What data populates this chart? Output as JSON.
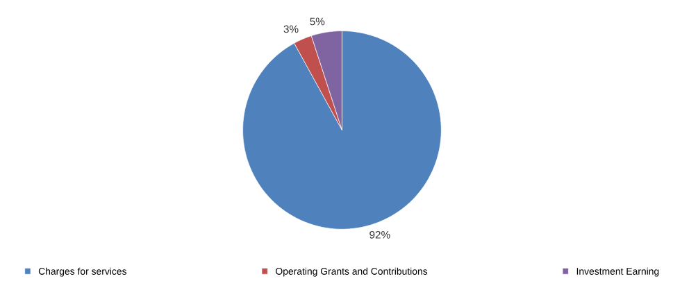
{
  "chart_data": {
    "type": "pie",
    "categories": [
      "Charges for services",
      "Operating Grants and Contributions",
      "Investment Earning"
    ],
    "values": [
      92,
      3,
      5
    ],
    "colors": [
      "#4f81bd",
      "#c0504d",
      "#8064a2"
    ],
    "value_labels": [
      "92%",
      "3%",
      "5%"
    ],
    "legend": "bottom"
  }
}
